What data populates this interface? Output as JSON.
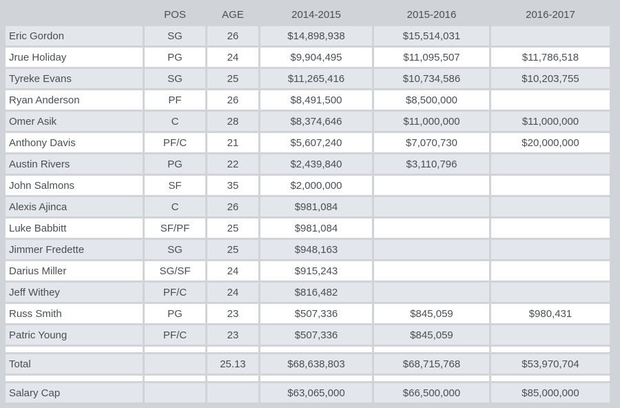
{
  "headers": [
    "",
    "POS",
    "AGE",
    "2014-2015",
    "2015-2016",
    "2016-2017"
  ],
  "rows": [
    [
      "Eric Gordon",
      "SG",
      "26",
      "$14,898,938",
      "$15,514,031",
      ""
    ],
    [
      "Jrue Holiday",
      "PG",
      "24",
      "$9,904,495",
      "$11,095,507",
      "$11,786,518"
    ],
    [
      "Tyreke Evans",
      "SG",
      "25",
      "$11,265,416",
      "$10,734,586",
      "$10,203,755"
    ],
    [
      "Ryan Anderson",
      "PF",
      "26",
      "$8,491,500",
      "$8,500,000",
      ""
    ],
    [
      "Omer Asik",
      "C",
      "28",
      "$8,374,646",
      "$11,000,000",
      "$11,000,000"
    ],
    [
      "Anthony Davis",
      "PF/C",
      "21",
      "$5,607,240",
      "$7,070,730",
      "$20,000,000"
    ],
    [
      "Austin Rivers",
      "PG",
      "22",
      "$2,439,840",
      "$3,110,796",
      ""
    ],
    [
      "John Salmons",
      "SF",
      "35",
      "$2,000,000",
      "",
      ""
    ],
    [
      "Alexis Ajinca",
      "C",
      "26",
      "$981,084",
      "",
      ""
    ],
    [
      "Luke Babbitt",
      "SF/PF",
      "25",
      "$981,084",
      "",
      ""
    ],
    [
      "Jimmer Fredette",
      "SG",
      "25",
      "$948,163",
      "",
      ""
    ],
    [
      "Darius Miller",
      "SG/SF",
      "24",
      "$915,243",
      "",
      ""
    ],
    [
      "Jeff Withey",
      "PF/C",
      "24",
      "$816,482",
      "",
      ""
    ],
    [
      "Russ Smith",
      "PG",
      "23",
      "$507,336",
      "$845,059",
      "$980,431"
    ],
    [
      "Patric Young",
      "PF/C",
      "23",
      "$507,336",
      "$845,059",
      ""
    ]
  ],
  "total": [
    "Total",
    "",
    "25.13",
    "$68,638,803",
    "$68,715,768",
    "$53,970,704"
  ],
  "salary_cap": [
    "Salary Cap",
    "",
    "",
    "$63,065,000",
    "$66,500,000",
    "$85,000,000"
  ]
}
